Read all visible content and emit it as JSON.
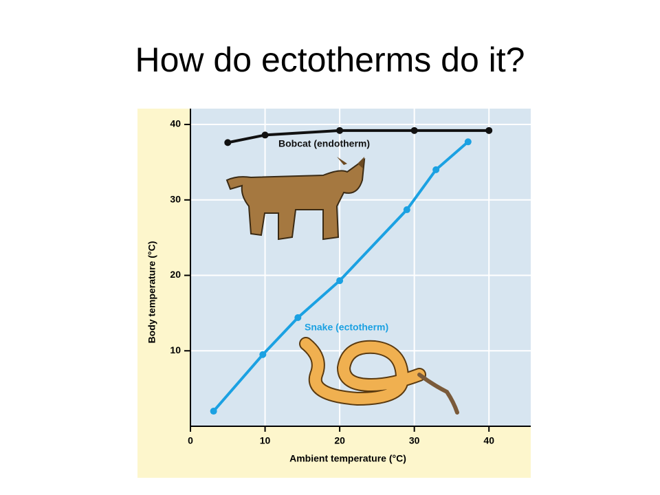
{
  "title": "How do ectotherms do it?",
  "chart_data": {
    "type": "line",
    "xlabel": "Ambient temperature (°C)",
    "ylabel": "Body temperature (°C)",
    "xlim": [
      0,
      45.6
    ],
    "ylim": [
      0,
      42.1
    ],
    "xticks": [
      0,
      10,
      20,
      30,
      40
    ],
    "yticks": [
      10,
      20,
      30,
      40
    ],
    "grid": true,
    "series": [
      {
        "name": "Bobcat (endotherm)",
        "color": "#111111",
        "x": [
          5,
          10,
          20,
          30,
          40
        ],
        "values": [
          37.6,
          38.6,
          39.2,
          39.2,
          39.2
        ]
      },
      {
        "name": "Snake (ectotherm)",
        "color": "#1ba1e2",
        "x": [
          3.1,
          9.7,
          14.4,
          20,
          29,
          32.9,
          37.2
        ],
        "values": [
          2.0,
          9.5,
          14.4,
          19.3,
          28.7,
          34.0,
          37.7
        ]
      }
    ]
  }
}
